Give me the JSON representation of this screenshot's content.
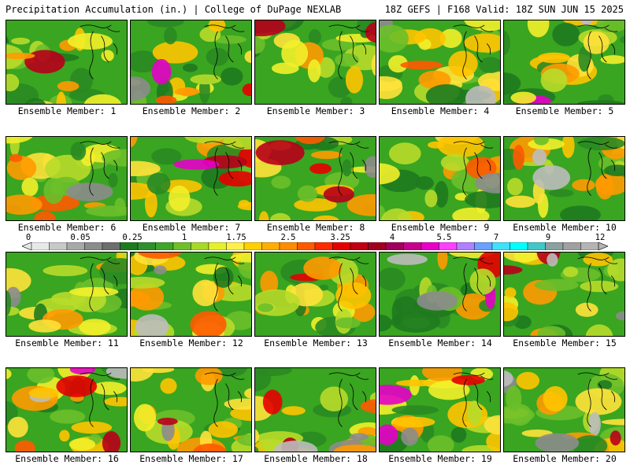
{
  "header": {
    "title": "Precipitation Accumulation (in.) | College of DuPage NEXLAB",
    "run_info": "18Z GEFS | F168 Valid: 18Z SUN JUN 15 2025"
  },
  "panel_label_prefix": "Ensemble Member: ",
  "members": [
    {
      "number": 1,
      "label": "Ensemble Member: 1"
    },
    {
      "number": 2,
      "label": "Ensemble Member: 2"
    },
    {
      "number": 3,
      "label": "Ensemble Member: 3"
    },
    {
      "number": 4,
      "label": "Ensemble Member: 4"
    },
    {
      "number": 5,
      "label": "Ensemble Member: 5"
    },
    {
      "number": 6,
      "label": "Ensemble Member: 6"
    },
    {
      "number": 7,
      "label": "Ensemble Member: 7"
    },
    {
      "number": 8,
      "label": "Ensemble Member: 8"
    },
    {
      "number": 9,
      "label": "Ensemble Member: 9"
    },
    {
      "number": 10,
      "label": "Ensemble Member: 10"
    },
    {
      "number": 11,
      "label": "Ensemble Member: 11"
    },
    {
      "number": 12,
      "label": "Ensemble Member: 12"
    },
    {
      "number": 13,
      "label": "Ensemble Member: 13"
    },
    {
      "number": 14,
      "label": "Ensemble Member: 14"
    },
    {
      "number": 15,
      "label": "Ensemble Member: 15"
    },
    {
      "number": 16,
      "label": "Ensemble Member: 16"
    },
    {
      "number": 17,
      "label": "Ensemble Member: 17"
    },
    {
      "number": 18,
      "label": "Ensemble Member: 18"
    },
    {
      "number": 19,
      "label": "Ensemble Member: 19"
    },
    {
      "number": 20,
      "label": "Ensemble Member: 20"
    }
  ],
  "colorbar": {
    "tick_labels": [
      "0",
      "0.05",
      "0.25",
      "1",
      "1.75",
      "2.5",
      "3.25",
      "4",
      "5.5",
      "7",
      "9",
      "12"
    ],
    "colors": [
      "#e8e8e8",
      "#c8c8c8",
      "#a8a8a8",
      "#8c8c8c",
      "#6e6e6e",
      "#1e7a1e",
      "#2e8f2e",
      "#3fa52a",
      "#6fbf2a",
      "#a8d82a",
      "#e6f02a",
      "#fff04a",
      "#ffd000",
      "#ffae00",
      "#ff8c00",
      "#ff5a00",
      "#ff2a00",
      "#e60000",
      "#c00010",
      "#a00020",
      "#a0005a",
      "#c8008c",
      "#e600c8",
      "#ff40ff",
      "#b080ff",
      "#6aa0ff",
      "#40e0ff",
      "#00ffff",
      "#40c8c8",
      "#8ca0a0",
      "#a0a0a0",
      "#b4b4b4"
    ]
  }
}
